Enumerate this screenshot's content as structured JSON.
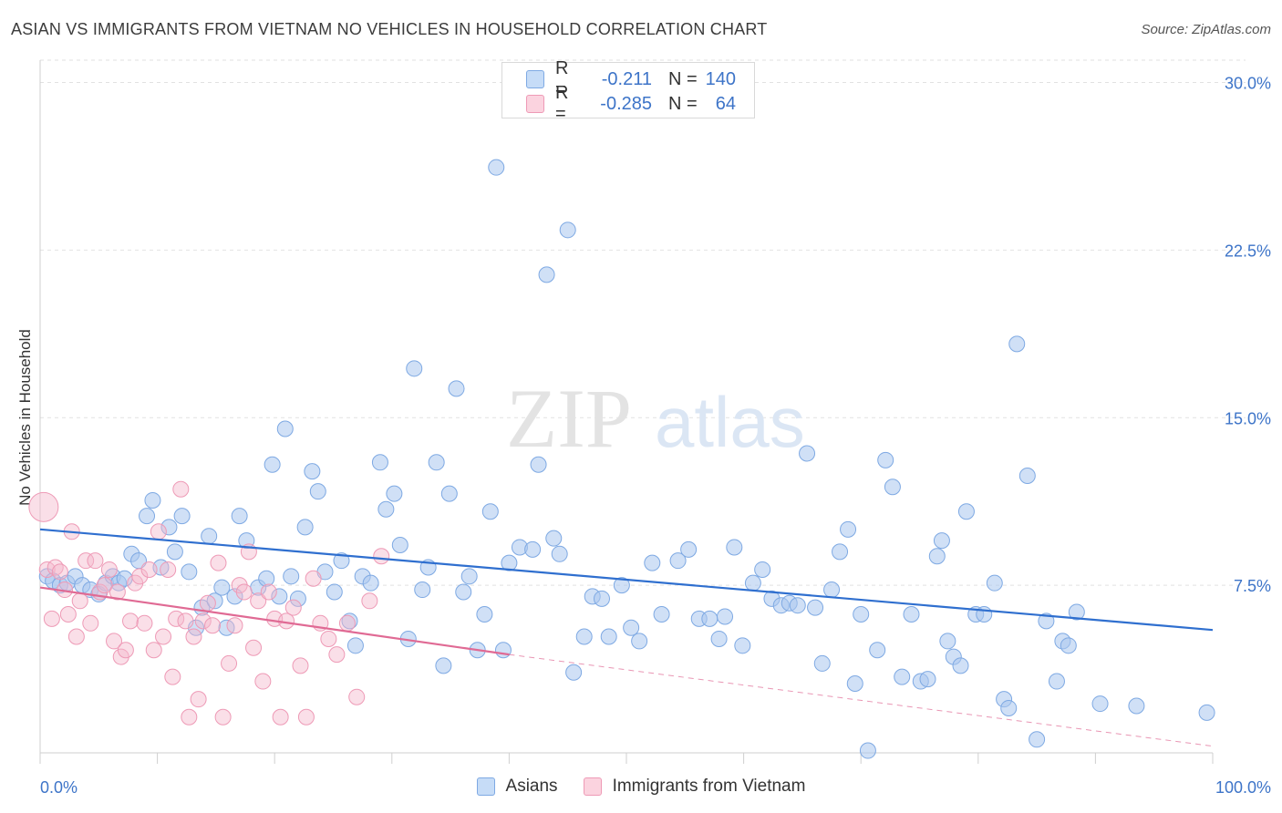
{
  "header": {
    "title": "ASIAN VS IMMIGRANTS FROM VIETNAM NO VEHICLES IN HOUSEHOLD CORRELATION CHART",
    "source": "Source: ZipAtlas.com"
  },
  "watermark": {
    "zip": "ZIP",
    "atlas": "atlas"
  },
  "legend_top": {
    "rows": [
      {
        "r_label": "R =",
        "r_value": "-0.211",
        "n_label": "N =",
        "n_value": "140",
        "color": "#a9c6ef"
      },
      {
        "r_label": "R =",
        "r_value": "-0.285",
        "n_label": "N =",
        "n_value": "64",
        "color": "#f5b8cb"
      }
    ]
  },
  "legend_bottom": [
    {
      "label": "Asians",
      "color": "#a9c6ef"
    },
    {
      "label": "Immigrants from Vietnam",
      "color": "#f5b8cb"
    }
  ],
  "chart_data": {
    "type": "scatter",
    "title": "ASIAN VS IMMIGRANTS FROM VIETNAM NO VEHICLES IN HOUSEHOLD CORRELATION CHART",
    "xlabel": "",
    "ylabel": "No Vehicles in Household",
    "xlim": [
      0,
      100
    ],
    "ylim": [
      0,
      31
    ],
    "x_tick_labels": [
      "0.0%",
      "100.0%"
    ],
    "y_ticks": [
      7.5,
      15.0,
      22.5,
      30.0
    ],
    "y_tick_labels": [
      "7.5%",
      "15.0%",
      "22.5%",
      "30.0%"
    ],
    "grid": true,
    "legend_position": "top-center",
    "colors": {
      "asians": "#6a9fe0",
      "vietnam": "#ef8fae",
      "asians_line": "#2f6fcf",
      "vietnam_line": "#e06a94",
      "tick_label": "#3d74c8"
    },
    "series": [
      {
        "name": "Asians",
        "points": [
          [
            0.6,
            7.9
          ],
          [
            1.1,
            7.7
          ],
          [
            1.7,
            7.5
          ],
          [
            2.3,
            7.6
          ],
          [
            3.0,
            7.9
          ],
          [
            3.6,
            7.5
          ],
          [
            4.3,
            7.3
          ],
          [
            5.0,
            7.1
          ],
          [
            5.6,
            7.6
          ],
          [
            6.2,
            7.9
          ],
          [
            6.7,
            7.6
          ],
          [
            7.2,
            7.8
          ],
          [
            7.8,
            8.9
          ],
          [
            8.4,
            8.6
          ],
          [
            9.1,
            10.6
          ],
          [
            9.6,
            11.3
          ],
          [
            10.3,
            8.3
          ],
          [
            11.0,
            10.1
          ],
          [
            11.5,
            9.0
          ],
          [
            12.1,
            10.6
          ],
          [
            12.7,
            8.1
          ],
          [
            13.3,
            5.6
          ],
          [
            13.8,
            6.5
          ],
          [
            14.4,
            9.7
          ],
          [
            14.9,
            6.8
          ],
          [
            15.5,
            7.4
          ],
          [
            15.9,
            5.6
          ],
          [
            16.6,
            7.0
          ],
          [
            17.0,
            10.6
          ],
          [
            17.6,
            9.5
          ],
          [
            18.6,
            7.4
          ],
          [
            19.3,
            7.8
          ],
          [
            19.8,
            12.9
          ],
          [
            20.4,
            7.0
          ],
          [
            20.9,
            14.5
          ],
          [
            21.4,
            7.9
          ],
          [
            22.0,
            6.9
          ],
          [
            22.6,
            10.1
          ],
          [
            23.2,
            12.6
          ],
          [
            23.7,
            11.7
          ],
          [
            24.3,
            8.1
          ],
          [
            25.1,
            7.2
          ],
          [
            25.7,
            8.6
          ],
          [
            26.4,
            5.9
          ],
          [
            26.9,
            4.8
          ],
          [
            27.5,
            7.9
          ],
          [
            28.2,
            7.6
          ],
          [
            29.0,
            13.0
          ],
          [
            29.5,
            10.9
          ],
          [
            30.2,
            11.6
          ],
          [
            30.7,
            9.3
          ],
          [
            31.4,
            5.1
          ],
          [
            31.9,
            17.2
          ],
          [
            32.6,
            7.3
          ],
          [
            33.1,
            8.3
          ],
          [
            33.8,
            13.0
          ],
          [
            34.4,
            3.9
          ],
          [
            34.9,
            11.6
          ],
          [
            35.5,
            16.3
          ],
          [
            36.1,
            7.2
          ],
          [
            36.6,
            7.9
          ],
          [
            37.3,
            4.6
          ],
          [
            37.9,
            6.2
          ],
          [
            38.4,
            10.8
          ],
          [
            38.9,
            26.2
          ],
          [
            39.5,
            4.6
          ],
          [
            40.0,
            8.5
          ],
          [
            40.9,
            9.2
          ],
          [
            42.0,
            9.1
          ],
          [
            42.5,
            12.9
          ],
          [
            43.2,
            21.4
          ],
          [
            43.8,
            9.6
          ],
          [
            44.3,
            8.9
          ],
          [
            45.0,
            23.4
          ],
          [
            45.5,
            3.6
          ],
          [
            46.4,
            5.2
          ],
          [
            47.1,
            7.0
          ],
          [
            47.9,
            6.9
          ],
          [
            48.5,
            5.2
          ],
          [
            49.6,
            7.5
          ],
          [
            50.4,
            5.6
          ],
          [
            51.1,
            5.0
          ],
          [
            52.2,
            8.5
          ],
          [
            53.0,
            6.2
          ],
          [
            54.4,
            8.6
          ],
          [
            55.3,
            9.1
          ],
          [
            56.2,
            6.0
          ],
          [
            57.1,
            6.0
          ],
          [
            57.9,
            5.1
          ],
          [
            58.4,
            6.1
          ],
          [
            59.2,
            9.2
          ],
          [
            59.9,
            4.8
          ],
          [
            60.8,
            7.6
          ],
          [
            61.6,
            8.2
          ],
          [
            62.4,
            6.9
          ],
          [
            63.2,
            6.6
          ],
          [
            63.9,
            6.7
          ],
          [
            64.6,
            6.6
          ],
          [
            65.4,
            13.4
          ],
          [
            66.1,
            6.5
          ],
          [
            66.7,
            4.0
          ],
          [
            67.5,
            7.3
          ],
          [
            68.2,
            9.0
          ],
          [
            68.9,
            10.0
          ],
          [
            69.5,
            3.1
          ],
          [
            70.0,
            6.2
          ],
          [
            70.6,
            0.1
          ],
          [
            71.4,
            4.6
          ],
          [
            72.1,
            13.1
          ],
          [
            72.7,
            11.9
          ],
          [
            73.5,
            3.4
          ],
          [
            74.3,
            6.2
          ],
          [
            75.1,
            3.2
          ],
          [
            75.7,
            3.3
          ],
          [
            76.5,
            8.8
          ],
          [
            76.9,
            9.5
          ],
          [
            77.4,
            5.0
          ],
          [
            77.9,
            4.3
          ],
          [
            78.5,
            3.9
          ],
          [
            79.0,
            10.8
          ],
          [
            79.8,
            6.2
          ],
          [
            80.5,
            6.2
          ],
          [
            81.4,
            7.6
          ],
          [
            82.2,
            2.4
          ],
          [
            82.6,
            2.0
          ],
          [
            83.3,
            18.3
          ],
          [
            84.2,
            12.4
          ],
          [
            85.0,
            0.6
          ],
          [
            85.8,
            5.9
          ],
          [
            86.7,
            3.2
          ],
          [
            87.2,
            5.0
          ],
          [
            87.7,
            4.8
          ],
          [
            88.4,
            6.3
          ],
          [
            90.4,
            2.2
          ],
          [
            93.5,
            2.1
          ],
          [
            99.5,
            1.8
          ]
        ]
      },
      {
        "name": "Immigrants from Vietnam",
        "points": [
          [
            0.3,
            11.0
          ],
          [
            0.6,
            8.2
          ],
          [
            1.0,
            6.0
          ],
          [
            1.3,
            8.3
          ],
          [
            1.7,
            8.1
          ],
          [
            2.1,
            7.3
          ],
          [
            2.4,
            6.2
          ],
          [
            2.7,
            9.9
          ],
          [
            3.1,
            5.2
          ],
          [
            3.4,
            6.8
          ],
          [
            3.9,
            8.6
          ],
          [
            4.3,
            5.8
          ],
          [
            4.7,
            8.6
          ],
          [
            5.1,
            7.2
          ],
          [
            5.5,
            7.5
          ],
          [
            5.9,
            8.2
          ],
          [
            6.3,
            5.0
          ],
          [
            6.6,
            7.2
          ],
          [
            6.9,
            4.3
          ],
          [
            7.3,
            4.6
          ],
          [
            7.7,
            5.9
          ],
          [
            8.1,
            7.6
          ],
          [
            8.5,
            7.9
          ],
          [
            8.9,
            5.8
          ],
          [
            9.3,
            8.2
          ],
          [
            9.7,
            4.6
          ],
          [
            10.1,
            9.9
          ],
          [
            10.5,
            5.2
          ],
          [
            10.9,
            8.2
          ],
          [
            11.3,
            3.4
          ],
          [
            11.6,
            6.0
          ],
          [
            12.0,
            11.8
          ],
          [
            12.4,
            5.9
          ],
          [
            12.7,
            1.6
          ],
          [
            13.1,
            5.2
          ],
          [
            13.5,
            2.4
          ],
          [
            13.9,
            5.9
          ],
          [
            14.3,
            6.7
          ],
          [
            14.7,
            5.7
          ],
          [
            15.2,
            8.5
          ],
          [
            15.6,
            1.6
          ],
          [
            16.1,
            4.0
          ],
          [
            16.6,
            5.7
          ],
          [
            17.0,
            7.5
          ],
          [
            17.4,
            7.2
          ],
          [
            17.8,
            9.0
          ],
          [
            18.2,
            4.7
          ],
          [
            18.6,
            6.8
          ],
          [
            19.0,
            3.2
          ],
          [
            19.5,
            7.2
          ],
          [
            20.0,
            6.0
          ],
          [
            20.5,
            1.6
          ],
          [
            21.0,
            5.9
          ],
          [
            21.6,
            6.5
          ],
          [
            22.2,
            3.9
          ],
          [
            22.7,
            1.6
          ],
          [
            23.3,
            7.8
          ],
          [
            23.9,
            5.8
          ],
          [
            24.6,
            5.1
          ],
          [
            25.3,
            4.4
          ],
          [
            26.2,
            5.8
          ],
          [
            27.0,
            2.5
          ],
          [
            28.1,
            6.8
          ],
          [
            29.1,
            8.8
          ]
        ]
      }
    ],
    "trend_lines": [
      {
        "series": "Asians",
        "x": [
          0,
          100
        ],
        "y": [
          10.0,
          5.5
        ],
        "style": "solid"
      },
      {
        "series": "Immigrants from Vietnam",
        "x": [
          0,
          40
        ],
        "y": [
          7.4,
          4.4
        ],
        "style": "solid"
      },
      {
        "series": "Immigrants from Vietnam",
        "x": [
          40,
          100
        ],
        "y": [
          4.4,
          0.3
        ],
        "style": "dashed"
      }
    ]
  }
}
